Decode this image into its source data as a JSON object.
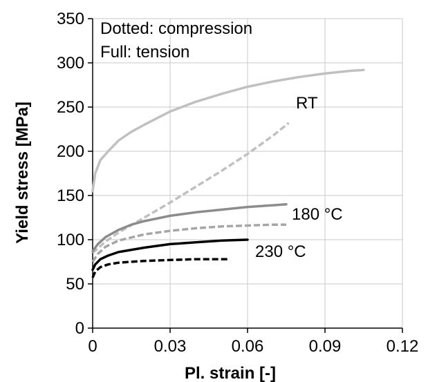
{
  "chart_data": {
    "type": "line",
    "title": "",
    "xlabel": "Pl. strain [-]",
    "ylabel": "Yield stress [MPa]",
    "xlim": [
      0,
      0.12
    ],
    "ylim": [
      0,
      350
    ],
    "x_ticks": [
      "0",
      "0.03",
      "0.06",
      "0.09",
      "0.12"
    ],
    "y_ticks": [
      "0",
      "50",
      "100",
      "150",
      "200",
      "250",
      "300",
      "350"
    ],
    "grid": true,
    "annotations": {
      "legend_line1": "Dotted: compression",
      "legend_line2": "Full: tension",
      "label_rt": "RT",
      "label_180": "180 °C",
      "label_230": "230 °C"
    },
    "series": [
      {
        "color": "#c0c0c0",
        "style": "solid",
        "x": [
          0,
          0.001,
          0.003,
          0.006,
          0.01,
          0.015,
          0.02,
          0.03,
          0.04,
          0.05,
          0.06,
          0.07,
          0.08,
          0.09,
          0.1,
          0.105
        ],
        "y": [
          155,
          175,
          190,
          200,
          212,
          222,
          230,
          245,
          256,
          265,
          273,
          279,
          284,
          288,
          291,
          292
        ]
      },
      {
        "color": "#c0c0c0",
        "style": "dotted",
        "x": [
          0,
          0.005,
          0.01,
          0.02,
          0.03,
          0.04,
          0.05,
          0.06,
          0.07,
          0.076
        ],
        "y": [
          85,
          98,
          108,
          125,
          142,
          160,
          178,
          197,
          218,
          232
        ]
      },
      {
        "color": "#8c8c8c",
        "style": "solid",
        "x": [
          0,
          0.002,
          0.005,
          0.01,
          0.015,
          0.02,
          0.03,
          0.04,
          0.05,
          0.06,
          0.07,
          0.075
        ],
        "y": [
          87,
          95,
          103,
          111,
          117,
          121,
          127,
          131,
          134,
          137,
          139,
          140
        ]
      },
      {
        "color": "#a6a6a6",
        "style": "dotted",
        "x": [
          0,
          0.002,
          0.005,
          0.01,
          0.02,
          0.03,
          0.04,
          0.05,
          0.06,
          0.07,
          0.075
        ],
        "y": [
          75,
          84,
          92,
          99,
          106,
          110,
          113,
          115,
          116,
          117,
          117
        ]
      },
      {
        "color": "#000000",
        "style": "solid",
        "x": [
          0,
          0.001,
          0.003,
          0.006,
          0.01,
          0.02,
          0.03,
          0.04,
          0.05,
          0.06
        ],
        "y": [
          66,
          72,
          78,
          82,
          86,
          91,
          95,
          97,
          99,
          100
        ]
      },
      {
        "color": "#000000",
        "style": "dotted",
        "x": [
          0,
          0.001,
          0.003,
          0.006,
          0.01,
          0.02,
          0.03,
          0.04,
          0.05,
          0.053
        ],
        "y": [
          57,
          64,
          69,
          72,
          74,
          76,
          77,
          78,
          78,
          78
        ]
      }
    ]
  }
}
